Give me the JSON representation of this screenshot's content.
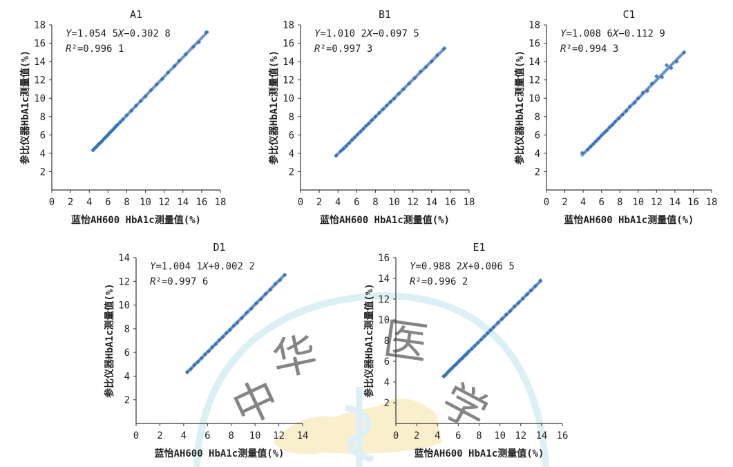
{
  "watermark": {
    "chars": [
      "中",
      "华",
      "医",
      "学"
    ],
    "color": "#a9d8e8",
    "map_color": "#f6e3a6"
  },
  "colors": {
    "point": "#2e6fba",
    "line": "#c98f8f",
    "axis": "#333333"
  },
  "chart_data": [
    {
      "type": "scatter",
      "title": "A1",
      "xlabel": "蓝怡AH600 HbA1c测量值(%)",
      "ylabel": "参比仪器HbA1c测量值(%)",
      "xlim": [
        0,
        18
      ],
      "ylim": [
        0,
        18
      ],
      "xticks": [
        0,
        2,
        4,
        6,
        8,
        10,
        12,
        14,
        16,
        18
      ],
      "yticks": [
        2,
        4,
        6,
        8,
        10,
        12,
        14,
        16,
        18
      ],
      "equation": "Y=1.054 5X−0.302 8",
      "r2": "R²=0.996 1",
      "fit": {
        "slope": 1.0545,
        "intercept": -0.3028,
        "x_range": [
          4.4,
          16.6
        ]
      },
      "points": [
        [
          4.4,
          4.35
        ],
        [
          4.6,
          4.55
        ],
        [
          4.8,
          4.75
        ],
        [
          5.0,
          5.0
        ],
        [
          5.2,
          5.15
        ],
        [
          5.4,
          5.35
        ],
        [
          5.6,
          5.6
        ],
        [
          5.8,
          5.8
        ],
        [
          6.0,
          6.0
        ],
        [
          6.2,
          6.25
        ],
        [
          6.4,
          6.45
        ],
        [
          6.6,
          6.65
        ],
        [
          6.8,
          6.9
        ],
        [
          7.0,
          7.1
        ],
        [
          7.3,
          7.4
        ],
        [
          7.6,
          7.7
        ],
        [
          8.0,
          8.15
        ],
        [
          8.5,
          8.65
        ],
        [
          9.0,
          9.2
        ],
        [
          9.5,
          9.7
        ],
        [
          10.0,
          10.2
        ],
        [
          10.6,
          10.9
        ],
        [
          11.2,
          11.5
        ],
        [
          11.8,
          12.1
        ],
        [
          12.4,
          12.8
        ],
        [
          13.1,
          13.5
        ],
        [
          13.6,
          14.1
        ],
        [
          14.3,
          14.8
        ],
        [
          15.1,
          15.6
        ],
        [
          15.7,
          16.1
        ],
        [
          16.5,
          17.2
        ]
      ]
    },
    {
      "type": "scatter",
      "title": "B1",
      "xlabel": "蓝怡AH600 HbA1c测量值(%)",
      "ylabel": "参比仪器HbA1c测量值(%)",
      "xlim": [
        0,
        18
      ],
      "ylim": [
        0,
        18
      ],
      "xticks": [
        0,
        2,
        4,
        6,
        8,
        10,
        12,
        14,
        16,
        18
      ],
      "yticks": [
        2,
        4,
        6,
        8,
        10,
        12,
        14,
        16,
        18
      ],
      "equation": "Y=1.010 2X−0.097 5",
      "r2": "R²=0.997 3",
      "fit": {
        "slope": 1.0102,
        "intercept": -0.0975,
        "x_range": [
          3.8,
          15.4
        ]
      },
      "points": [
        [
          3.8,
          3.75
        ],
        [
          4.3,
          4.25
        ],
        [
          4.6,
          4.5
        ],
        [
          4.9,
          4.8
        ],
        [
          5.2,
          5.1
        ],
        [
          5.5,
          5.45
        ],
        [
          5.8,
          5.75
        ],
        [
          6.1,
          6.05
        ],
        [
          6.4,
          6.35
        ],
        [
          6.7,
          6.65
        ],
        [
          7.0,
          7.0
        ],
        [
          7.3,
          7.25
        ],
        [
          7.6,
          7.6
        ],
        [
          8.0,
          8.0
        ],
        [
          8.4,
          8.4
        ],
        [
          8.8,
          8.8
        ],
        [
          9.2,
          9.2
        ],
        [
          9.6,
          9.6
        ],
        [
          10.0,
          9.95
        ],
        [
          10.5,
          10.5
        ],
        [
          11.0,
          11.0
        ],
        [
          11.6,
          11.6
        ],
        [
          12.2,
          12.2
        ],
        [
          12.8,
          12.9
        ],
        [
          13.4,
          13.4
        ],
        [
          14.0,
          14.0
        ],
        [
          14.6,
          14.7
        ],
        [
          15.3,
          15.4
        ]
      ]
    },
    {
      "type": "scatter",
      "title": "C1",
      "xlabel": "蓝怡AH600 HbA1c测量值(%)",
      "ylabel": "参比仪器HbA1c测量值(%)",
      "xlim": [
        0,
        18
      ],
      "ylim": [
        0,
        18
      ],
      "xticks": [
        0,
        2,
        4,
        6,
        8,
        10,
        12,
        14,
        16,
        18
      ],
      "yticks": [
        2,
        4,
        6,
        8,
        10,
        12,
        14,
        16,
        18
      ],
      "equation": "Y=1.008 6X−0.112 9",
      "r2": "R²=0.994 3",
      "fit": {
        "slope": 1.0086,
        "intercept": -0.1129,
        "x_range": [
          3.9,
          15.0
        ]
      },
      "points": [
        [
          3.9,
          4.05
        ],
        [
          4.5,
          4.4
        ],
        [
          4.8,
          4.7
        ],
        [
          5.1,
          5.0
        ],
        [
          5.4,
          5.3
        ],
        [
          5.7,
          5.6
        ],
        [
          6.0,
          5.95
        ],
        [
          6.3,
          6.25
        ],
        [
          6.6,
          6.5
        ],
        [
          6.9,
          6.85
        ],
        [
          7.2,
          7.1
        ],
        [
          7.5,
          7.45
        ],
        [
          7.9,
          7.8
        ],
        [
          8.3,
          8.2
        ],
        [
          8.7,
          8.6
        ],
        [
          9.1,
          9.1
        ],
        [
          9.6,
          9.5
        ],
        [
          10.0,
          10.0
        ],
        [
          10.5,
          10.6
        ],
        [
          11.0,
          10.8
        ],
        [
          11.5,
          11.6
        ],
        [
          12.0,
          12.4
        ],
        [
          12.6,
          12.3
        ],
        [
          13.1,
          13.6
        ],
        [
          13.6,
          13.3
        ],
        [
          14.2,
          14.0
        ],
        [
          15.0,
          15.0
        ]
      ]
    },
    {
      "type": "scatter",
      "title": "D1",
      "xlabel": "蓝怡AH600 HbA1c测量值(%)",
      "ylabel": "参比仪器HbA1c测量值(%)",
      "xlim": [
        0,
        14
      ],
      "ylim": [
        0,
        14
      ],
      "xticks": [
        0,
        2,
        4,
        6,
        8,
        10,
        12,
        14
      ],
      "yticks": [
        2,
        4,
        6,
        8,
        10,
        12,
        14
      ],
      "equation": "Y=1.004 1X+0.002 2",
      "r2": "R²=0.997 6",
      "fit": {
        "slope": 1.0041,
        "intercept": 0.0022,
        "x_range": [
          4.3,
          12.5
        ]
      },
      "points": [
        [
          4.3,
          4.35
        ],
        [
          4.6,
          4.6
        ],
        [
          4.9,
          4.95
        ],
        [
          5.2,
          5.2
        ],
        [
          5.5,
          5.5
        ],
        [
          5.8,
          5.85
        ],
        [
          6.1,
          6.1
        ],
        [
          6.4,
          6.45
        ],
        [
          6.7,
          6.7
        ],
        [
          7.0,
          7.05
        ],
        [
          7.3,
          7.3
        ],
        [
          7.6,
          7.65
        ],
        [
          7.9,
          7.9
        ],
        [
          8.2,
          8.25
        ],
        [
          8.5,
          8.5
        ],
        [
          8.9,
          8.9
        ],
        [
          9.3,
          9.35
        ],
        [
          9.7,
          9.7
        ],
        [
          10.1,
          10.15
        ],
        [
          10.5,
          10.5
        ],
        [
          10.9,
          10.95
        ],
        [
          11.3,
          11.3
        ],
        [
          11.7,
          11.8
        ],
        [
          12.1,
          12.1
        ],
        [
          12.5,
          12.55
        ]
      ]
    },
    {
      "type": "scatter",
      "title": "E1",
      "xlabel": "蓝怡AH600 HbA1c测量值(%)",
      "ylabel": "参比仪器HbA1c测量值(%)",
      "xlim": [
        0,
        16
      ],
      "ylim": [
        0,
        16
      ],
      "xticks": [
        0,
        2,
        4,
        6,
        8,
        10,
        12,
        14,
        16
      ],
      "yticks": [
        2,
        4,
        6,
        8,
        10,
        12,
        14,
        16
      ],
      "equation": "Y=0.988 2X+0.006 5",
      "r2": "R²=0.996 2",
      "fit": {
        "slope": 0.9882,
        "intercept": 0.0065,
        "x_range": [
          4.6,
          13.9
        ]
      },
      "points": [
        [
          4.6,
          4.55
        ],
        [
          4.8,
          4.7
        ],
        [
          5.0,
          4.95
        ],
        [
          5.2,
          5.15
        ],
        [
          5.4,
          5.35
        ],
        [
          5.6,
          5.55
        ],
        [
          5.8,
          5.7
        ],
        [
          6.0,
          5.95
        ],
        [
          6.2,
          6.15
        ],
        [
          6.4,
          6.3
        ],
        [
          6.6,
          6.55
        ],
        [
          6.8,
          6.7
        ],
        [
          7.0,
          6.95
        ],
        [
          7.3,
          7.2
        ],
        [
          7.6,
          7.5
        ],
        [
          7.9,
          7.8
        ],
        [
          8.2,
          8.1
        ],
        [
          8.5,
          8.4
        ],
        [
          8.8,
          8.7
        ],
        [
          9.1,
          9.0
        ],
        [
          9.4,
          9.3
        ],
        [
          9.8,
          9.7
        ],
        [
          10.2,
          10.1
        ],
        [
          10.6,
          10.5
        ],
        [
          11.0,
          10.85
        ],
        [
          11.4,
          11.3
        ],
        [
          11.8,
          11.65
        ],
        [
          12.2,
          12.05
        ],
        [
          12.6,
          12.45
        ],
        [
          13.0,
          12.85
        ],
        [
          13.4,
          13.25
        ],
        [
          13.9,
          13.8
        ]
      ]
    }
  ]
}
